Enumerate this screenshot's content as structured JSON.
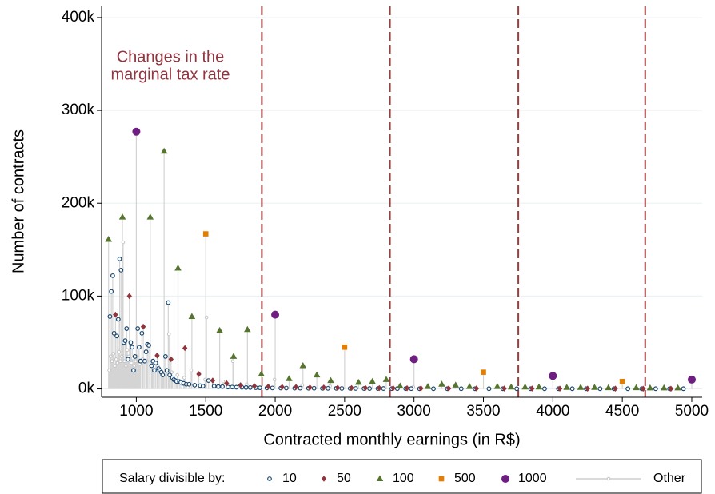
{
  "chart_data": {
    "type": "scatter",
    "x_label": "Contracted monthly earnings (in R$)",
    "y_label": "Number of contracts",
    "annotation": [
      "Changes in the",
      "marginal tax rate"
    ],
    "annotation_color": "#93343f",
    "vlines": [
      1903.98,
      2826.65,
      3751.05,
      4664.68
    ],
    "vline_color": "#a03c3c",
    "stems": true,
    "stem_color": "#d4d4d4",
    "grid": true,
    "legend_title": "Salary divisible by:",
    "legend_position": "bottom",
    "xlim": [
      750,
      5075
    ],
    "ylim": [
      -9000,
      412000
    ],
    "xticks": [
      1000,
      1500,
      2000,
      2500,
      3000,
      3500,
      4000,
      4500,
      5000
    ],
    "yticks": [
      {
        "value": 0,
        "label": "0k"
      },
      {
        "value": 100000,
        "label": "100k"
      },
      {
        "value": 200000,
        "label": "200k"
      },
      {
        "value": 300000,
        "label": "300k"
      },
      {
        "value": 400000,
        "label": "400k"
      }
    ],
    "series": [
      {
        "name": "10",
        "color": "#1a476f",
        "marker": "circle-open",
        "x": [
          810,
          820,
          830,
          840,
          860,
          870,
          880,
          890,
          910,
          920,
          930,
          940,
          960,
          970,
          980,
          990,
          1010,
          1020,
          1030,
          1040,
          1060,
          1070,
          1080,
          1090,
          1110,
          1120,
          1130,
          1140,
          1160,
          1170,
          1180,
          1190,
          1210,
          1220,
          1230,
          1240,
          1260,
          1270,
          1280,
          1290,
          1310,
          1320,
          1340,
          1360,
          1380,
          1420,
          1460,
          1480,
          1520,
          1560,
          1590,
          1620,
          1660,
          1690,
          1720,
          1760,
          1790,
          1820,
          1860,
          1890,
          1940,
          1980,
          2040,
          2080,
          2140,
          2180,
          2240,
          2280,
          2340,
          2380,
          2440,
          2480,
          2540,
          2580,
          2640,
          2680,
          2740,
          2780,
          2840,
          2880,
          2940,
          2980,
          3040,
          3140,
          3240,
          3340,
          3440,
          3540,
          3640,
          3740,
          3840,
          3940,
          4040,
          4140,
          4240,
          4340,
          4440,
          4540,
          4640,
          4740,
          4840,
          4940
        ],
        "values": [
          78000,
          105000,
          122000,
          60000,
          57000,
          75000,
          140000,
          128000,
          50000,
          52000,
          65000,
          32000,
          50000,
          45000,
          20000,
          35000,
          65000,
          45000,
          30000,
          60000,
          30000,
          40000,
          48000,
          47000,
          25000,
          30000,
          20000,
          28000,
          22000,
          20000,
          18000,
          15000,
          35000,
          20000,
          93000,
          15000,
          12000,
          10000,
          9000,
          8000,
          8000,
          7000,
          6000,
          5000,
          5000,
          4000,
          3500,
          3000,
          9000,
          3000,
          2500,
          2500,
          2000,
          2000,
          1800,
          1700,
          1500,
          1500,
          1300,
          1200,
          1000,
          1000,
          900,
          900,
          800,
          800,
          700,
          700,
          600,
          600,
          600,
          500,
          500,
          500,
          400,
          400,
          400,
          400,
          300,
          300,
          300,
          300,
          200,
          200,
          200,
          200,
          200,
          200,
          200,
          200,
          200,
          200,
          200,
          200,
          200,
          200,
          200,
          200,
          200,
          200,
          200,
          200
        ]
      },
      {
        "name": "50",
        "color": "#90353b",
        "marker": "diamond",
        "x": [
          850,
          950,
          1050,
          1150,
          1250,
          1350,
          1450,
          1550,
          1650,
          1750,
          1850,
          1950,
          2050,
          2150,
          2250,
          2350,
          2450,
          2550,
          2650,
          2750,
          2850,
          2950,
          3050,
          3250,
          3450,
          3650,
          3850,
          4050,
          4250,
          4450,
          4650,
          4850
        ],
        "values": [
          80000,
          100000,
          67000,
          36000,
          32000,
          44000,
          16000,
          9000,
          6000,
          4000,
          3000,
          2500,
          2000,
          2000,
          1500,
          1500,
          1200,
          1000,
          1000,
          900,
          800,
          700,
          600,
          500,
          500,
          400,
          400,
          300,
          300,
          300,
          200,
          200
        ]
      },
      {
        "name": "100",
        "color": "#55752f",
        "marker": "triangle",
        "x": [
          800,
          900,
          1100,
          1200,
          1300,
          1400,
          1600,
          1700,
          1800,
          1900,
          2100,
          2200,
          2300,
          2400,
          2600,
          2700,
          2800,
          2900,
          3100,
          3200,
          3300,
          3400,
          3600,
          3700,
          3800,
          3900,
          4100,
          4200,
          4300,
          4400,
          4600,
          4700,
          4800,
          4900
        ],
        "values": [
          161000,
          185000,
          185000,
          256000,
          130000,
          78000,
          63000,
          35000,
          64000,
          16000,
          11000,
          25000,
          15000,
          9000,
          7000,
          8000,
          10000,
          3000,
          2500,
          5000,
          4000,
          2500,
          2500,
          2000,
          2000,
          2000,
          1500,
          1500,
          1500,
          1200,
          1200,
          1000,
          1000,
          1000
        ]
      },
      {
        "name": "500",
        "color": "#e37e00",
        "marker": "square",
        "x": [
          1500,
          2500,
          3500,
          4500
        ],
        "values": [
          167000,
          45000,
          18000,
          8000
        ]
      },
      {
        "name": "1000",
        "color": "#6e1e80",
        "marker": "circle",
        "x": [
          1000,
          2000,
          3000,
          4000,
          5000
        ],
        "values": [
          277000,
          80000,
          32000,
          14000,
          10000
        ]
      },
      {
        "name": "Other",
        "color": "#c4c4c4",
        "marker": "dot",
        "x": [
          805,
          815,
          825,
          835,
          845,
          855,
          865,
          875,
          885,
          895,
          905,
          915,
          925,
          935,
          945,
          955,
          965,
          975,
          985,
          995,
          1005,
          1015,
          1025,
          1045,
          1075,
          1115,
          1155,
          1185,
          1195,
          1235,
          1255,
          1295,
          1345,
          1395,
          1495,
          1505,
          1625,
          1695,
          1795,
          1995,
          2195,
          2395,
          2995
        ],
        "values": [
          20000,
          35000,
          30000,
          38000,
          25000,
          32000,
          28000,
          40000,
          30000,
          35000,
          158000,
          30000,
          25000,
          42000,
          35000,
          30000,
          28000,
          33000,
          25000,
          30000,
          35000,
          30000,
          27000,
          32000,
          30000,
          25000,
          25000,
          20000,
          20000,
          59000,
          18000,
          15000,
          12000,
          20000,
          10000,
          77000,
          8000,
          30000,
          5000,
          10000,
          4000,
          3000,
          2000
        ]
      }
    ]
  }
}
